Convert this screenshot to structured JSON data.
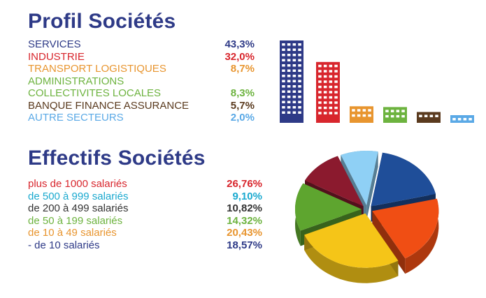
{
  "profil": {
    "title": "Profil Sociétés",
    "items": [
      {
        "label": "SERVICES",
        "value": "43,3%",
        "color": "#2e3a87"
      },
      {
        "label": "INDUSTRIE",
        "value": "32,0%",
        "color": "#d8262d"
      },
      {
        "label": "TRANSPORT LOGISTIQUES",
        "value": "8,7%",
        "color": "#e8952f"
      },
      {
        "label": "ADMINISTRATIONS",
        "value": "",
        "color": "#6db33f"
      },
      {
        "label": "COLLECTIVITES LOCALES",
        "value": "8,3%",
        "color": "#6db33f"
      },
      {
        "label": "BANQUE FINANCE ASSURANCE",
        "value": "5,7%",
        "color": "#5a3a1e"
      },
      {
        "label": "AUTRE SECTEURS",
        "value": "2,0%",
        "color": "#5aa9e6"
      }
    ]
  },
  "effectifs": {
    "title": "Effectifs Sociétés",
    "items": [
      {
        "label": "plus de 1000 salariés",
        "value": "26,76%",
        "color": "#d8262d"
      },
      {
        "label": "de 500 à 999 salariés",
        "value": "9,10%",
        "color": "#1aa9cf"
      },
      {
        "label": "de 200 à 499 salariés",
        "value": "10,82%",
        "color": "#333333"
      },
      {
        "label": "de 50 à 199 salariés",
        "value": "14,32%",
        "color": "#6db33f"
      },
      {
        "label": "de 10 à 49 salariés",
        "value": "20,43%",
        "color": "#e8952f"
      },
      {
        "label": "- de 10 salariés",
        "value": "18,57%",
        "color": "#2e3a87"
      }
    ]
  },
  "chart_data": [
    {
      "type": "bar",
      "categories": [
        "SERVICES",
        "INDUSTRIE",
        "TRANSPORT LOGISTIQUES",
        "COLLECTIVITES LOCALES",
        "BANQUE FINANCE ASSURANCE",
        "AUTRE SECTEURS"
      ],
      "values": [
        43.3,
        32.0,
        8.7,
        8.3,
        5.7,
        2.0
      ],
      "colors": [
        "#2e3a87",
        "#d8262d",
        "#e8952f",
        "#6db33f",
        "#5a3a1e",
        "#5aa9e6"
      ]
    },
    {
      "type": "pie",
      "slices": [
        {
          "value": 18.57,
          "color": "#1f4e99"
        },
        {
          "value": 20.43,
          "color": "#f04e14"
        },
        {
          "value": 26.76,
          "color": "#f5c518"
        },
        {
          "value": 14.32,
          "color": "#5ea52f"
        },
        {
          "value": 10.82,
          "color": "#8b1a2e"
        },
        {
          "value": 9.1,
          "color": "#8fd0f5"
        }
      ]
    }
  ]
}
